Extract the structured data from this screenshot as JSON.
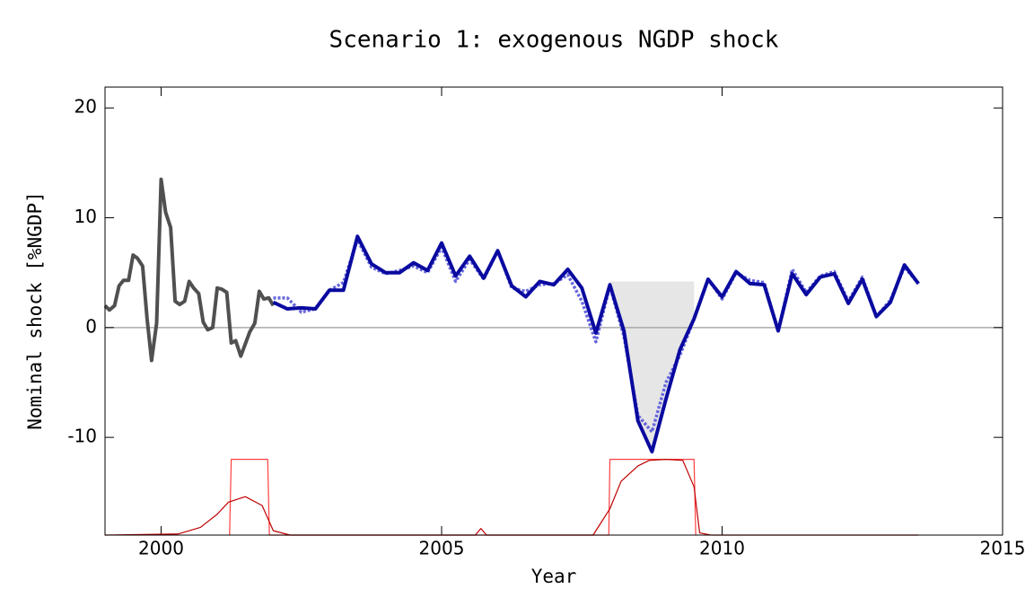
{
  "chart_data": {
    "type": "line",
    "title": "Scenario 1: exogenous NGDP shock",
    "xlabel": "Year",
    "ylabel": "Nominal shock [%NGDP]",
    "xlim": [
      1999,
      2015
    ],
    "ylim": [
      -18.9,
      21.9
    ],
    "xticks": [
      2000,
      2005,
      2010,
      2015
    ],
    "yticks": [
      -10,
      0,
      10,
      20
    ],
    "hline": 0,
    "shade": {
      "x_range": [
        2008.0,
        2009.5
      ],
      "level": 4.2,
      "color": "#e6e6e6"
    },
    "series": [
      {
        "color": "#505050",
        "width": 4,
        "dash": "none",
        "x": [
          1999.0,
          1999.08,
          1999.17,
          1999.25,
          1999.33,
          1999.42,
          1999.5,
          1999.58,
          1999.67,
          1999.75,
          1999.83,
          1999.92,
          2000.0,
          2000.08,
          2000.17,
          2000.25,
          2000.33,
          2000.42,
          2000.5,
          2000.58,
          2000.67,
          2000.75,
          2000.83,
          2000.92,
          2001.0,
          2001.08,
          2001.17,
          2001.25,
          2001.33,
          2001.42,
          2001.5,
          2001.58,
          2001.67,
          2001.75,
          2001.83,
          2001.92,
          2002.0
        ],
        "values": [
          2.0,
          1.6,
          2.0,
          3.8,
          4.3,
          4.3,
          6.6,
          6.3,
          5.6,
          0.8,
          -3.0,
          0.4,
          13.5,
          10.5,
          9.1,
          2.4,
          2.1,
          2.4,
          4.2,
          3.6,
          3.1,
          0.5,
          -0.2,
          0,
          3.6,
          3.5,
          3.2,
          -1.4,
          -1.2,
          -2.6,
          -1.5,
          -0.4,
          0.4,
          3.3,
          2.6,
          2.7,
          2.0
        ]
      },
      {
        "color": "#6666dd",
        "width": 3.5,
        "dash": "3,2",
        "x": [
          2002.0,
          2002.25,
          2002.5,
          2002.75,
          2003.0,
          2003.25,
          2003.5,
          2003.75,
          2004.0,
          2004.25,
          2004.5,
          2004.75,
          2005.0,
          2005.25,
          2005.5,
          2005.75,
          2006.0,
          2006.25,
          2006.5,
          2006.75,
          2007.0,
          2007.25,
          2007.5,
          2007.75,
          2008.0,
          2008.25,
          2008.5,
          2008.75,
          2009.0,
          2009.25,
          2009.5,
          2009.75,
          2010.0,
          2010.25,
          2010.5,
          2010.75,
          2011.0,
          2011.25,
          2011.5,
          2011.75,
          2012.0,
          2012.25,
          2012.5,
          2012.75,
          2013.0,
          2013.25,
          2013.5
        ],
        "values": [
          2.7,
          2.7,
          1.4,
          1.7,
          3.4,
          4.1,
          8.0,
          5.5,
          4.9,
          5.2,
          5.6,
          5.0,
          7.3,
          4.2,
          6.2,
          4.4,
          7.0,
          3.6,
          3.3,
          3.9,
          4.0,
          4.8,
          2.4,
          -1.3,
          3.8,
          -0.8,
          -8.0,
          -9.5,
          -5.0,
          -2.5,
          0.8,
          4.4,
          2.6,
          5.0,
          4.3,
          4.1,
          -0.3,
          5.3,
          3.2,
          4.7,
          5.1,
          2.4,
          4.6,
          1.0,
          2.5,
          5.5,
          4.0
        ]
      },
      {
        "color": "#0a0aa0",
        "width": 4,
        "dash": "none",
        "x": [
          2002.0,
          2002.25,
          2002.5,
          2002.75,
          2003.0,
          2003.25,
          2003.5,
          2003.75,
          2004.0,
          2004.25,
          2004.5,
          2004.75,
          2005.0,
          2005.25,
          2005.5,
          2005.75,
          2006.0,
          2006.25,
          2006.5,
          2006.75,
          2007.0,
          2007.25,
          2007.5,
          2007.75,
          2008.0,
          2008.25,
          2008.5,
          2008.75,
          2009.0,
          2009.25,
          2009.5,
          2009.75,
          2010.0,
          2010.25,
          2010.5,
          2010.75,
          2011.0,
          2011.25,
          2011.5,
          2011.75,
          2012.0,
          2012.25,
          2012.5,
          2012.75,
          2013.0,
          2013.25,
          2013.5
        ],
        "values": [
          2.3,
          1.7,
          1.8,
          1.7,
          3.4,
          3.4,
          8.3,
          5.8,
          5.0,
          5.0,
          5.9,
          5.2,
          7.7,
          4.7,
          6.5,
          4.5,
          7.0,
          3.8,
          2.8,
          4.2,
          3.9,
          5.3,
          3.6,
          -0.5,
          3.9,
          -0.3,
          -8.5,
          -11.3,
          -6.5,
          -2.0,
          0.8,
          4.4,
          2.8,
          5.1,
          4.0,
          3.9,
          -0.3,
          4.9,
          3.0,
          4.6,
          4.9,
          2.2,
          4.4,
          1.0,
          2.3,
          5.7,
          4.0
        ]
      },
      {
        "color": "#ff4040",
        "width": 1.2,
        "dash": "none",
        "x": [
          2001.22,
          2001.25,
          2001.9,
          2001.93,
          2007.98,
          2008.0,
          2009.5,
          2009.53
        ],
        "values": [
          -18.9,
          -12,
          -12,
          -18.9,
          -18.9,
          -12,
          -12,
          -18.9
        ]
      },
      {
        "color": "#c00000",
        "width": 1.2,
        "dash": "none",
        "x": [
          1999.0,
          2000.3,
          2000.7,
          2001.0,
          2001.2,
          2001.5,
          2001.8,
          2002.0,
          2002.3,
          2005.6,
          2005.7,
          2005.8,
          2007.7,
          2008.0,
          2008.2,
          2008.5,
          2008.7,
          2009.0,
          2009.3,
          2009.5,
          2009.6,
          2009.8,
          2013.5
        ],
        "values": [
          -18.9,
          -18.8,
          -18.2,
          -17,
          -15.9,
          -15.4,
          -16.2,
          -18.5,
          -18.9,
          -18.9,
          -18.3,
          -18.9,
          -18.9,
          -16.5,
          -14,
          -12.6,
          -12.1,
          -12.0,
          -12.1,
          -14.5,
          -18.7,
          -18.9,
          -18.9
        ]
      }
    ]
  }
}
